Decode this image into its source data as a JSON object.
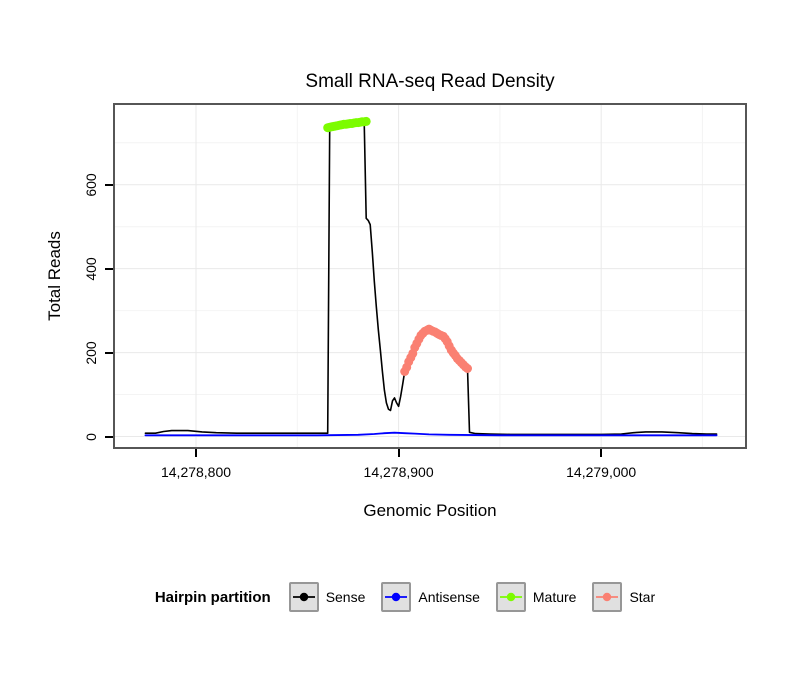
{
  "chart_data": {
    "type": "line",
    "title": "Small RNA-seq Read Density",
    "xlabel": "Genomic Position",
    "ylabel": "Total Reads",
    "x_domain": [
      14278760,
      14279071
    ],
    "y_domain": [
      -25,
      790
    ],
    "grid": true,
    "legend_position": "bottom",
    "x_ticks": [
      {
        "value": 14278800,
        "label": "14,278,800"
      },
      {
        "value": 14278900,
        "label": "14,278,900"
      },
      {
        "value": 14279000,
        "label": "14,279,000"
      }
    ],
    "y_ticks": [
      {
        "value": 0,
        "label": "0"
      },
      {
        "value": 200,
        "label": "200"
      },
      {
        "value": 400,
        "label": "400"
      },
      {
        "value": 600,
        "label": "600"
      }
    ],
    "x_minor": [
      14278850,
      14278950,
      14279050
    ],
    "y_minor": [
      100,
      300,
      500,
      700
    ],
    "series": [
      {
        "name": "Sense",
        "type": "line",
        "color": "#000000",
        "width": 1.6,
        "points": [
          [
            14278775,
            8
          ],
          [
            14278780,
            8
          ],
          [
            14278784,
            12
          ],
          [
            14278788,
            14
          ],
          [
            14278796,
            14
          ],
          [
            14278803,
            11
          ],
          [
            14278810,
            9
          ],
          [
            14278820,
            8
          ],
          [
            14278835,
            8
          ],
          [
            14278850,
            8
          ],
          [
            14278862,
            8
          ],
          [
            14278865,
            8
          ],
          [
            14278866,
            735
          ],
          [
            14278868,
            738
          ],
          [
            14278871,
            741
          ],
          [
            14278874,
            744
          ],
          [
            14278877,
            746
          ],
          [
            14278880,
            748
          ],
          [
            14278882,
            750
          ],
          [
            14278883,
            750
          ],
          [
            14278884,
            520
          ],
          [
            14278885,
            515
          ],
          [
            14278886,
            505
          ],
          [
            14278887,
            440
          ],
          [
            14278888,
            370
          ],
          [
            14278889,
            310
          ],
          [
            14278890,
            255
          ],
          [
            14278891,
            205
          ],
          [
            14278892,
            155
          ],
          [
            14278893,
            110
          ],
          [
            14278894,
            80
          ],
          [
            14278895,
            65
          ],
          [
            14278896,
            62
          ],
          [
            14278897,
            85
          ],
          [
            14278898,
            92
          ],
          [
            14278899,
            80
          ],
          [
            14278900,
            72
          ],
          [
            14278901,
            95
          ],
          [
            14278902,
            125
          ],
          [
            14278903,
            155
          ],
          [
            14278904,
            165
          ],
          [
            14278905,
            178
          ],
          [
            14278906,
            188
          ],
          [
            14278907,
            198
          ],
          [
            14278908,
            212
          ],
          [
            14278909,
            222
          ],
          [
            14278910,
            232
          ],
          [
            14278911,
            241
          ],
          [
            14278912,
            246
          ],
          [
            14278913,
            251
          ],
          [
            14278914,
            253
          ],
          [
            14278915,
            256
          ],
          [
            14278916,
            253
          ],
          [
            14278917,
            251
          ],
          [
            14278918,
            249
          ],
          [
            14278919,
            246
          ],
          [
            14278920,
            243
          ],
          [
            14278921,
            241
          ],
          [
            14278922,
            239
          ],
          [
            14278923,
            233
          ],
          [
            14278924,
            226
          ],
          [
            14278925,
            216
          ],
          [
            14278926,
            206
          ],
          [
            14278927,
            199
          ],
          [
            14278928,
            193
          ],
          [
            14278929,
            186
          ],
          [
            14278930,
            181
          ],
          [
            14278931,
            176
          ],
          [
            14278932,
            171
          ],
          [
            14278933,
            166
          ],
          [
            14278934,
            162
          ],
          [
            14278935,
            10
          ],
          [
            14278938,
            7
          ],
          [
            14278945,
            6
          ],
          [
            14278955,
            5
          ],
          [
            14278970,
            5
          ],
          [
            14278985,
            5
          ],
          [
            14279000,
            5
          ],
          [
            14279010,
            6
          ],
          [
            14279016,
            9
          ],
          [
            14279022,
            11
          ],
          [
            14279030,
            11
          ],
          [
            14279038,
            9
          ],
          [
            14279045,
            7
          ],
          [
            14279052,
            6
          ],
          [
            14279057,
            6
          ]
        ]
      },
      {
        "name": "Antisense",
        "type": "line",
        "color": "#0000ff",
        "width": 1.8,
        "points": [
          [
            14278775,
            3
          ],
          [
            14278800,
            3
          ],
          [
            14278830,
            3
          ],
          [
            14278860,
            3
          ],
          [
            14278880,
            4
          ],
          [
            14278888,
            6
          ],
          [
            14278893,
            8
          ],
          [
            14278898,
            9
          ],
          [
            14278903,
            8
          ],
          [
            14278908,
            7
          ],
          [
            14278915,
            5
          ],
          [
            14278925,
            4
          ],
          [
            14278950,
            3
          ],
          [
            14279000,
            3
          ],
          [
            14279030,
            3
          ],
          [
            14279057,
            3
          ]
        ]
      },
      {
        "name": "Mature",
        "type": "points",
        "color": "#7cfc00",
        "radius": 4.5,
        "points": [
          [
            14278865,
            736
          ],
          [
            14278866,
            737
          ],
          [
            14278867,
            738
          ],
          [
            14278868,
            739
          ],
          [
            14278869,
            740
          ],
          [
            14278870,
            741
          ],
          [
            14278871,
            742
          ],
          [
            14278872,
            743
          ],
          [
            14278873,
            744
          ],
          [
            14278874,
            744
          ],
          [
            14278875,
            745
          ],
          [
            14278876,
            746
          ],
          [
            14278877,
            746
          ],
          [
            14278878,
            747
          ],
          [
            14278879,
            748
          ],
          [
            14278880,
            748
          ],
          [
            14278881,
            749
          ],
          [
            14278882,
            750
          ],
          [
            14278883,
            750
          ],
          [
            14278884,
            751
          ]
        ]
      },
      {
        "name": "Star",
        "type": "points",
        "color": "#fa8072",
        "radius": 4.5,
        "points": [
          [
            14278903,
            155
          ],
          [
            14278904,
            165
          ],
          [
            14278905,
            178
          ],
          [
            14278906,
            188
          ],
          [
            14278907,
            198
          ],
          [
            14278908,
            212
          ],
          [
            14278909,
            222
          ],
          [
            14278910,
            232
          ],
          [
            14278911,
            241
          ],
          [
            14278912,
            246
          ],
          [
            14278913,
            251
          ],
          [
            14278914,
            253
          ],
          [
            14278915,
            256
          ],
          [
            14278916,
            253
          ],
          [
            14278917,
            251
          ],
          [
            14278918,
            249
          ],
          [
            14278919,
            246
          ],
          [
            14278920,
            243
          ],
          [
            14278921,
            241
          ],
          [
            14278922,
            239
          ],
          [
            14278923,
            233
          ],
          [
            14278924,
            226
          ],
          [
            14278925,
            216
          ],
          [
            14278926,
            206
          ],
          [
            14278927,
            199
          ],
          [
            14278928,
            193
          ],
          [
            14278929,
            186
          ],
          [
            14278930,
            181
          ],
          [
            14278931,
            176
          ],
          [
            14278932,
            171
          ],
          [
            14278933,
            166
          ],
          [
            14278934,
            162
          ]
        ]
      }
    ],
    "legend": {
      "title": "Hairpin partition",
      "items": [
        {
          "label": "Sense",
          "color": "#000000"
        },
        {
          "label": "Antisense",
          "color": "#0000ff"
        },
        {
          "label": "Mature",
          "color": "#7cfc00"
        },
        {
          "label": "Star",
          "color": "#fa8072"
        }
      ]
    },
    "colors": {
      "panel_border": "#565656",
      "grid_major": "#e9e9e9",
      "grid_minor": "#f4f4f4",
      "legend_key_bg": "#e0e0e0",
      "legend_key_border": "#979797"
    }
  }
}
